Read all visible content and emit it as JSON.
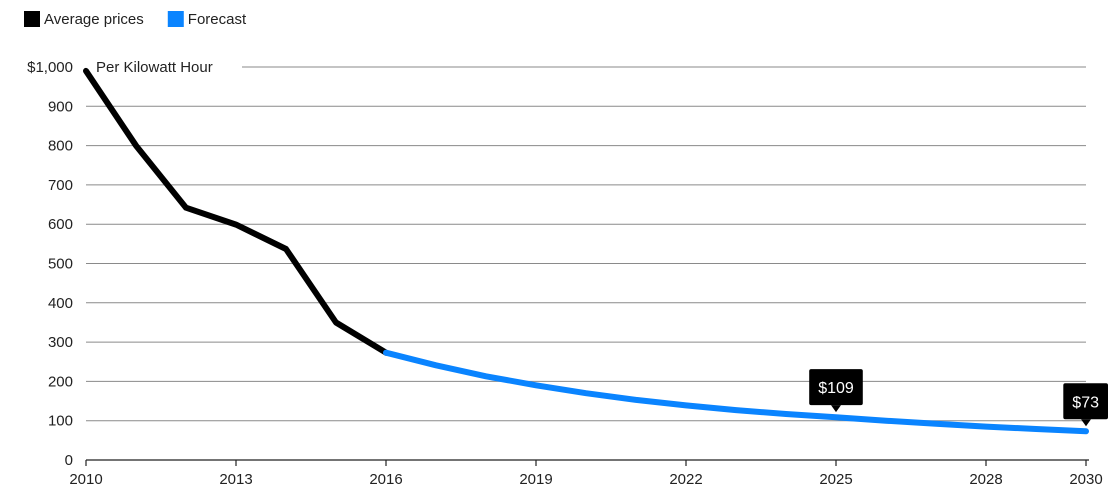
{
  "chart_data": {
    "type": "line",
    "unit_label": "Per Kilowatt Hour",
    "y_ticks": [
      "0",
      "100",
      "200",
      "300",
      "400",
      "500",
      "600",
      "700",
      "800",
      "900",
      "$1,000"
    ],
    "x_ticks": [
      "2010",
      "2013",
      "2016",
      "2019",
      "2022",
      "2025",
      "2028",
      "2030"
    ],
    "xlim": [
      2010,
      2030
    ],
    "ylim": [
      0,
      1000
    ],
    "grid": true,
    "legend_position": "top-left",
    "series": [
      {
        "name": "Average prices",
        "color": "#000000",
        "x": [
          2010,
          2011,
          2012,
          2013,
          2014,
          2015,
          2016
        ],
        "y": [
          990,
          800,
          642,
          599,
          537,
          350,
          273
        ]
      },
      {
        "name": "Forecast",
        "color": "#0a84ff",
        "x": [
          2016,
          2017,
          2018,
          2019,
          2020,
          2021,
          2022,
          2023,
          2024,
          2025,
          2026,
          2027,
          2028,
          2029,
          2030
        ],
        "y": [
          273,
          241,
          213,
          190,
          170,
          153,
          139,
          127,
          117,
          109,
          100,
          92,
          85,
          79,
          73
        ]
      }
    ],
    "annotations": [
      {
        "text": "$109",
        "x": 2025,
        "y": 109
      },
      {
        "text": "$73",
        "x": 2030,
        "y": 73
      }
    ]
  }
}
